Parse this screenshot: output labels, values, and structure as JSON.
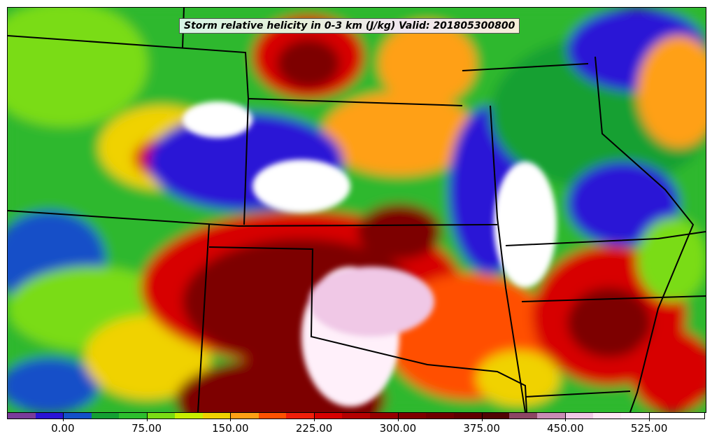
{
  "map": {
    "title": "Storm relative helicity in 0-3 km (J/kg) Valid: 201805300800",
    "field": "storm-relative-helicity-0-3km",
    "units": "J/kg",
    "valid_time": "201805300800"
  },
  "colorbar": {
    "colors": [
      "#7a3c9a",
      "#2a14d6",
      "#1450c8",
      "#14a032",
      "#2dbe2d",
      "#7adc14",
      "#c8f000",
      "#f0d200",
      "#ffa014",
      "#ff5000",
      "#f01e0a",
      "#d70000",
      "#b40000",
      "#960000",
      "#7d0000",
      "#6e0000",
      "#5f0000",
      "#500505",
      "#8c4664",
      "#c88cb4",
      "#f0c8e6",
      "#ffe6f5",
      "#fff0fa",
      "#ffffff",
      "#ffffff"
    ],
    "labels": [
      "0.00",
      "75.00",
      "150.00",
      "225.00",
      "300.00",
      "375.00",
      "450.00",
      "525.00"
    ]
  }
}
